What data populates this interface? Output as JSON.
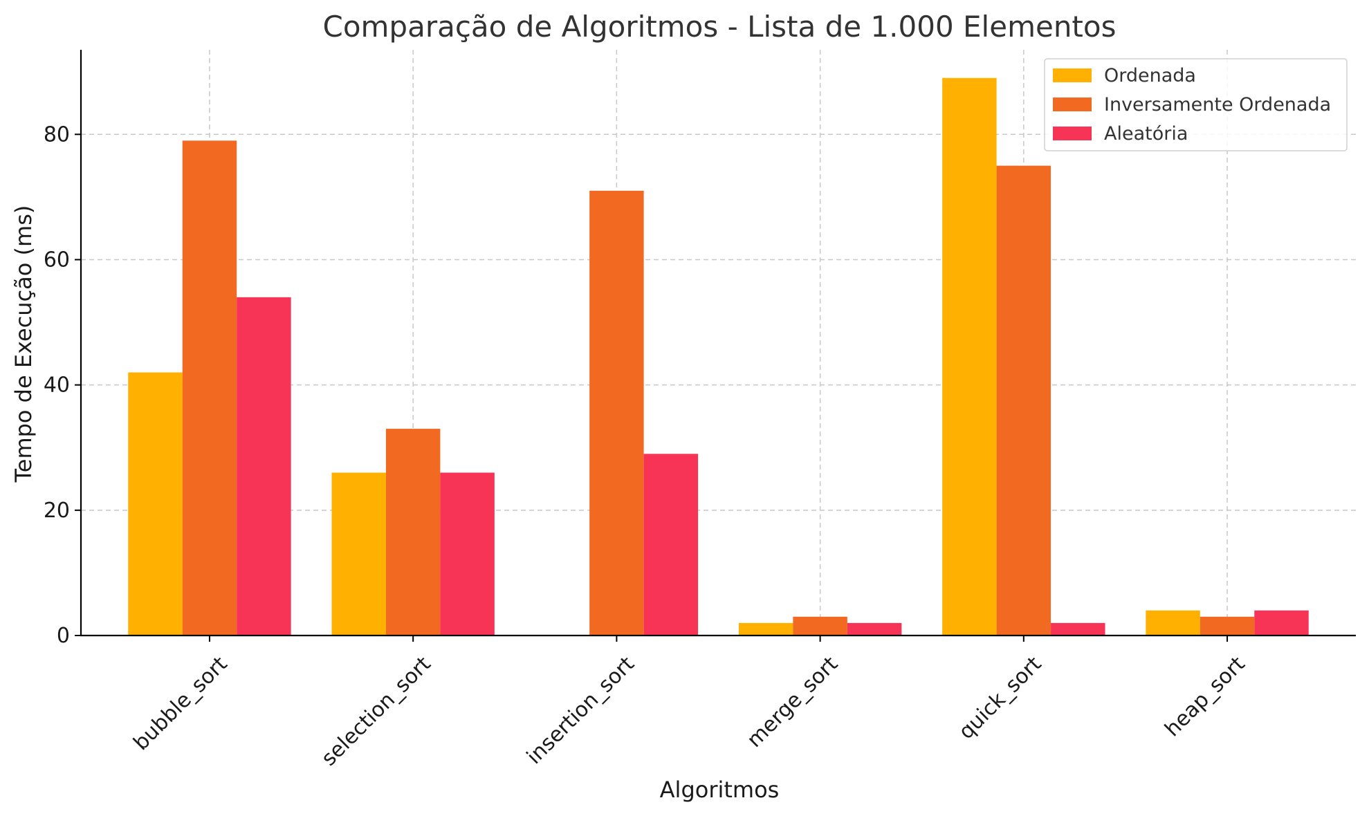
{
  "chart_data": {
    "type": "bar",
    "title": "Comparação de Algoritmos - Lista de 1.000 Elementos",
    "xlabel": "Algoritmos",
    "ylabel": "Tempo de Execução (ms)",
    "categories": [
      "bubble_sort",
      "selection_sort",
      "insertion_sort",
      "merge_sort",
      "quick_sort",
      "heap_sort"
    ],
    "series": [
      {
        "name": "Ordenada",
        "color": "#FFB000",
        "values": [
          42,
          26,
          0,
          2,
          89,
          4
        ]
      },
      {
        "name": "Inversamente Ordenada",
        "color": "#F26A22",
        "values": [
          79,
          33,
          71,
          3,
          75,
          3
        ]
      },
      {
        "name": "Aleatória",
        "color": "#F73456",
        "values": [
          54,
          26,
          29,
          2,
          2,
          4
        ]
      }
    ],
    "ylim": [
      0,
      93.5
    ],
    "yticks": [
      0,
      20,
      40,
      60,
      80
    ],
    "grid": true,
    "legend_position": "top-right"
  }
}
